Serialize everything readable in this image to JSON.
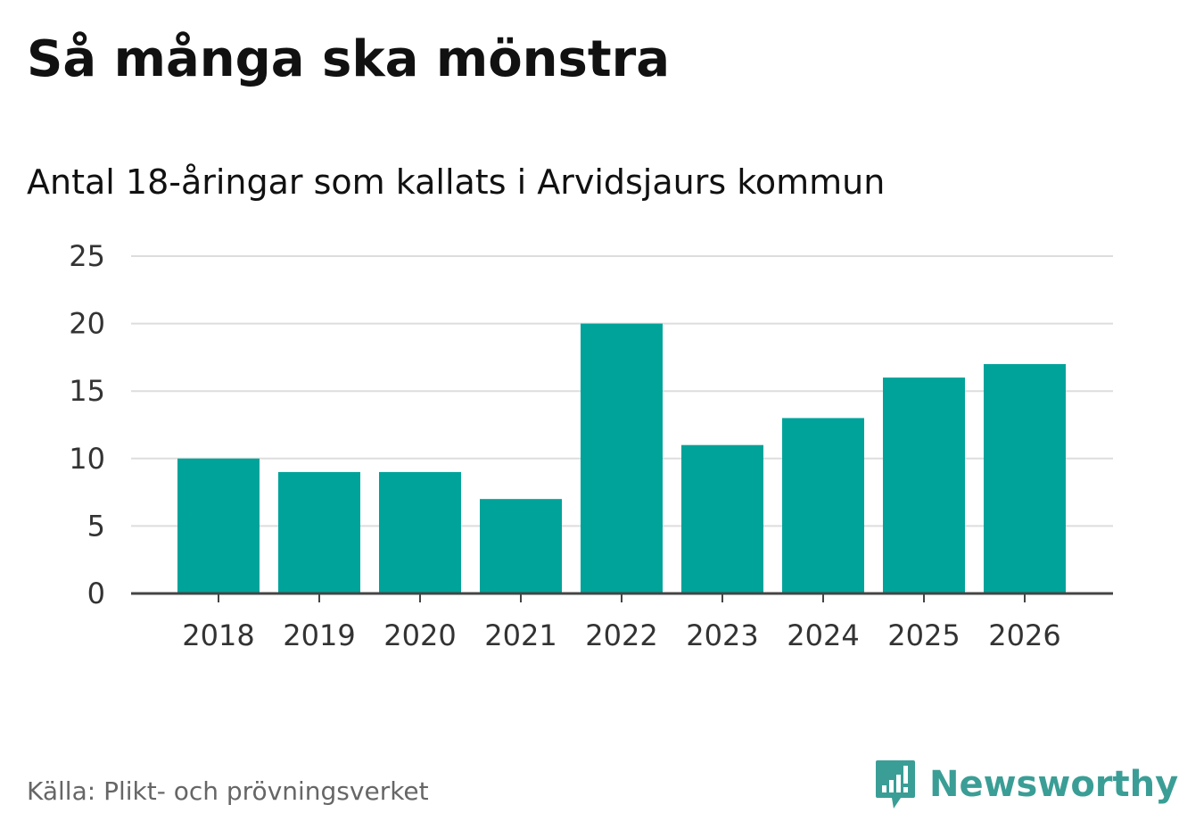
{
  "header": {
    "title": "Så många ska mönstra",
    "subtitle": "Antal 18-åringar som kallats i Arvidsjaurs kommun"
  },
  "footer": {
    "source": "Källa: Plikt- och prövningsverket",
    "brand": "Newsworthy",
    "brand_icon": "bar-chart-speech-bubble-icon"
  },
  "colors": {
    "bar": "#00a39a",
    "grid": "#dddddd",
    "axis": "#444444",
    "brand": "#3a9e96"
  },
  "chart_data": {
    "type": "bar",
    "title": "Så många ska mönstra",
    "subtitle": "Antal 18-åringar som kallats i Arvidsjaurs kommun",
    "categories": [
      "2018",
      "2019",
      "2020",
      "2021",
      "2022",
      "2023",
      "2024",
      "2025",
      "2026"
    ],
    "values": [
      10,
      9,
      9,
      7,
      20,
      11,
      13,
      16,
      17
    ],
    "ylim": [
      0,
      25
    ],
    "yticks": [
      0,
      5,
      10,
      15,
      20,
      25
    ],
    "xlabel": "",
    "ylabel": "",
    "grid": true,
    "legend": "none"
  }
}
